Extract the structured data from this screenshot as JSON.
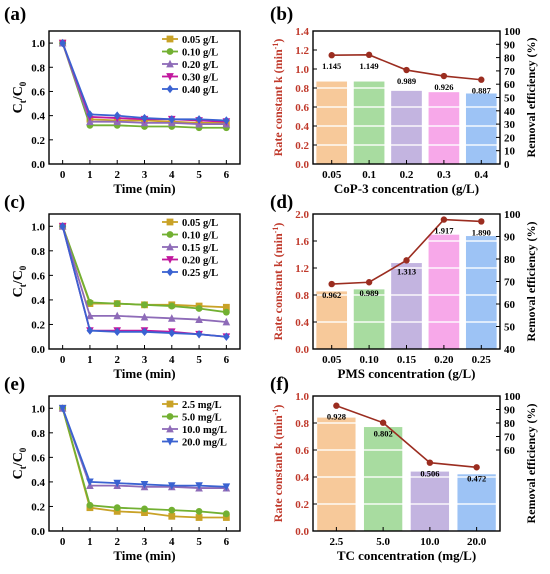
{
  "chart_data": [
    {
      "panel": "(a)",
      "type": "line",
      "xlabel": "Time (min)",
      "ylabel_main": "C",
      "ylabel_sub1": "t",
      "ylabel_mid": "/C",
      "ylabel_sub2": "0",
      "xlim": [
        -0.5,
        6.5
      ],
      "ylim": [
        0,
        1.1
      ],
      "xticks": [
        "0",
        "1",
        "2",
        "3",
        "4",
        "5",
        "6"
      ],
      "yticks": [
        "0.0",
        "0.2",
        "0.4",
        "0.6",
        "0.8",
        "1.0"
      ],
      "legend_position": "top-right",
      "x": [
        0,
        1,
        2,
        3,
        4,
        5,
        6
      ],
      "series": [
        {
          "name": "0.05 g/L",
          "color": "#c9a227",
          "marker": "square",
          "values": [
            1.0,
            0.37,
            0.36,
            0.36,
            0.35,
            0.34,
            0.34
          ]
        },
        {
          "name": "0.10 g/L",
          "color": "#72b032",
          "marker": "circle",
          "values": [
            1.0,
            0.32,
            0.32,
            0.31,
            0.31,
            0.3,
            0.3
          ]
        },
        {
          "name": "0.20 g/L",
          "color": "#8e6bb8",
          "marker": "triangle",
          "values": [
            1.0,
            0.35,
            0.35,
            0.34,
            0.34,
            0.33,
            0.33
          ]
        },
        {
          "name": "0.30 g/L",
          "color": "#c2189e",
          "marker": "down-triangle",
          "values": [
            1.0,
            0.39,
            0.38,
            0.37,
            0.37,
            0.36,
            0.35
          ]
        },
        {
          "name": "0.40 g/L",
          "color": "#3a62d1",
          "marker": "diamond",
          "values": [
            1.0,
            0.41,
            0.4,
            0.38,
            0.37,
            0.37,
            0.36
          ]
        }
      ]
    },
    {
      "panel": "(b)",
      "type": "bar",
      "xlabel": "CoP-3 concentration (g/L)",
      "ylabel_left": "Rate constant k (min",
      "ylabel_left_sup": "-1",
      "ylabel_left_end": ")",
      "ylabel_right": "Removal efficiency (%)",
      "categories": [
        "0.05",
        "0.1",
        "0.2",
        "0.3",
        "0.4"
      ],
      "ylim_left": [
        0,
        1.4
      ],
      "yticks_left": [
        "0.0",
        "0.2",
        "0.4",
        "0.6",
        "0.8",
        "1.0",
        "1.2",
        "1.4"
      ],
      "ylim_right": [
        0,
        100
      ],
      "yticks_right": [
        "0",
        "10",
        "20",
        "30",
        "40",
        "50",
        "60",
        "70",
        "80",
        "90",
        "100"
      ],
      "bar_colors": [
        "#f7c99a",
        "#a8dca0",
        "#c3b4e0",
        "#f7a8e9",
        "#9dc3f5"
      ],
      "line_color": "#9b2d20",
      "removal_efficiency": [
        62,
        62,
        55,
        54,
        53
      ],
      "rate_constant": [
        1.145,
        1.149,
        0.989,
        0.926,
        0.887
      ],
      "rate_labels": [
        "1.145",
        "1.149",
        "0.989",
        "0.926",
        "0.887"
      ]
    },
    {
      "panel": "(c)",
      "type": "line",
      "xlabel": "Time (min)",
      "ylabel_main": "C",
      "ylabel_sub1": "t",
      "ylabel_mid": "/C",
      "ylabel_sub2": "0",
      "xlim": [
        -0.5,
        6.5
      ],
      "ylim": [
        0,
        1.1
      ],
      "xticks": [
        "0",
        "1",
        "2",
        "3",
        "4",
        "5",
        "6"
      ],
      "yticks": [
        "0.0",
        "0.2",
        "0.4",
        "0.6",
        "0.8",
        "1.0"
      ],
      "legend_position": "top-right",
      "x": [
        0,
        1,
        2,
        3,
        4,
        5,
        6
      ],
      "series": [
        {
          "name": "0.05 g/L",
          "color": "#c9a227",
          "marker": "square",
          "values": [
            1.0,
            0.37,
            0.37,
            0.36,
            0.36,
            0.35,
            0.34
          ]
        },
        {
          "name": "0.10 g/L",
          "color": "#72b032",
          "marker": "circle",
          "values": [
            1.0,
            0.38,
            0.37,
            0.36,
            0.35,
            0.33,
            0.3
          ]
        },
        {
          "name": "0.15 g/L",
          "color": "#8e6bb8",
          "marker": "triangle",
          "values": [
            1.0,
            0.27,
            0.27,
            0.26,
            0.25,
            0.24,
            0.22
          ]
        },
        {
          "name": "0.20 g/L",
          "color": "#c2189e",
          "marker": "down-triangle",
          "values": [
            1.0,
            0.15,
            0.15,
            0.15,
            0.14,
            0.12,
            0.1
          ]
        },
        {
          "name": "0.25 g/L",
          "color": "#3a62d1",
          "marker": "diamond",
          "values": [
            1.0,
            0.15,
            0.14,
            0.14,
            0.13,
            0.12,
            0.1
          ]
        }
      ]
    },
    {
      "panel": "(d)",
      "type": "bar",
      "xlabel": "PMS concentration (g/L)",
      "ylabel_left": "Rate constant k (min",
      "ylabel_left_sup": "-1",
      "ylabel_left_end": ")",
      "ylabel_right": "Removal efficiency (%)",
      "categories": [
        "0.05",
        "0.10",
        "0.15",
        "0.20",
        "0.25"
      ],
      "ylim_left": [
        0,
        2.0
      ],
      "yticks_left": [
        "0.0",
        "0.4",
        "0.8",
        "1.2",
        "1.6",
        "2.0"
      ],
      "ylim_right": [
        40,
        100
      ],
      "yticks_right": [
        "40",
        "50",
        "60",
        "70",
        "80",
        "90",
        "100"
      ],
      "bar_colors": [
        "#f7c99a",
        "#a8dca0",
        "#c3b4e0",
        "#f7a8e9",
        "#9dc3f5"
      ],
      "line_color": "#9b2d20",
      "removal_efficiency": [
        65.6,
        66.5,
        78.2,
        90.8,
        90.2
      ],
      "rate_constant": [
        0.962,
        0.989,
        1.313,
        1.917,
        1.89
      ],
      "rate_labels": [
        "0.962",
        "0.989",
        "1.313",
        "1.917",
        "1.890"
      ]
    },
    {
      "panel": "(e)",
      "type": "line",
      "xlabel": "Time (min)",
      "ylabel_main": "C",
      "ylabel_sub1": "t",
      "ylabel_mid": "/C",
      "ylabel_sub2": "0",
      "xlim": [
        -0.5,
        6.5
      ],
      "ylim": [
        0,
        1.1
      ],
      "xticks": [
        "0",
        "1",
        "2",
        "3",
        "4",
        "5",
        "6"
      ],
      "yticks": [
        "0.0",
        "0.2",
        "0.4",
        "0.6",
        "0.8",
        "1.0"
      ],
      "legend_position": "top-right",
      "x": [
        0,
        1,
        2,
        3,
        4,
        5,
        6
      ],
      "series": [
        {
          "name": "2.5 mg/L",
          "color": "#c9a227",
          "marker": "square",
          "values": [
            1.0,
            0.19,
            0.16,
            0.15,
            0.12,
            0.11,
            0.11
          ]
        },
        {
          "name": "5.0 mg/L",
          "color": "#72b032",
          "marker": "circle",
          "values": [
            1.0,
            0.21,
            0.19,
            0.18,
            0.17,
            0.16,
            0.14
          ]
        },
        {
          "name": "10.0 mg/L",
          "color": "#8e6bb8",
          "marker": "triangle",
          "values": [
            1.0,
            0.37,
            0.37,
            0.36,
            0.36,
            0.35,
            0.35
          ]
        },
        {
          "name": "20.0 mg/L",
          "color": "#3a62d1",
          "marker": "down-triangle",
          "values": [
            1.0,
            0.4,
            0.39,
            0.38,
            0.37,
            0.37,
            0.36
          ]
        }
      ]
    },
    {
      "panel": "(f)",
      "type": "bar",
      "xlabel": "TC concentration (mg/L)",
      "ylabel_left": "Rate constant k (min",
      "ylabel_left_sup": "-1",
      "ylabel_left_end": ")",
      "ylabel_right": "Removal efficiency (%)",
      "categories": [
        "2.5",
        "5.0",
        "10.0",
        "20.0"
      ],
      "ylim_left": [
        0,
        1.0
      ],
      "yticks_left": [
        "0.0",
        "0.2",
        "0.4",
        "0.6",
        "0.8",
        "1.0"
      ],
      "ylim_right": [
        0,
        100
      ],
      "yticks_right": [
        "60",
        "70",
        "80",
        "90",
        "100"
      ],
      "right_tick_values": [
        60,
        70,
        80,
        90,
        100
      ],
      "bar_colors": [
        "#f7c99a",
        "#a8dca0",
        "#c3b4e0",
        "#9dc3f5"
      ],
      "line_color": "#9b2d20",
      "removal_efficiency": [
        84,
        77,
        44,
        42
      ],
      "rate_constant": [
        0.928,
        0.802,
        0.506,
        0.472
      ],
      "rate_labels": [
        "0.928",
        "0.802",
        "0.506",
        "0.472"
      ]
    }
  ]
}
